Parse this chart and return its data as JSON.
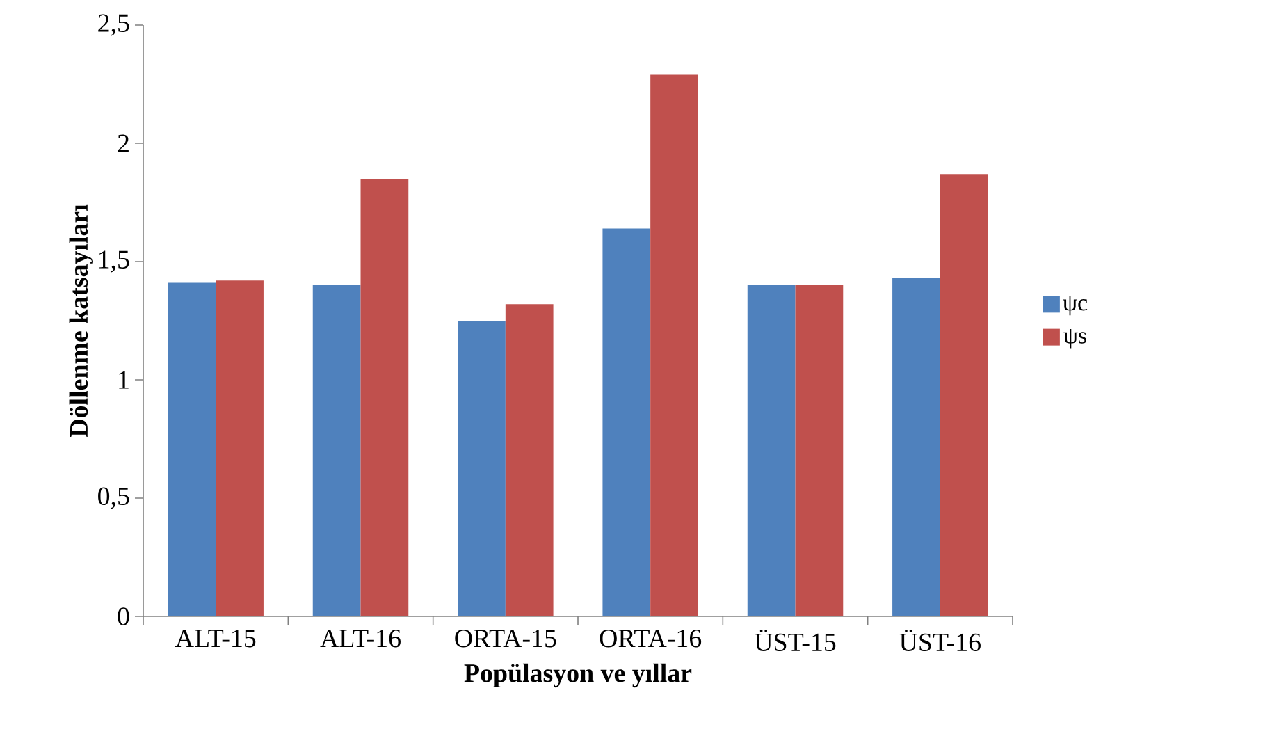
{
  "chart_data": {
    "type": "bar",
    "xlabel": "Popülasyon ve yıllar",
    "ylabel": "Döllenme katsayıları",
    "categories": [
      "ALT-15",
      "ALT-16",
      "ORTA-15",
      "ORTA-16",
      "ÜST-15",
      "ÜST-16"
    ],
    "series": [
      {
        "name": "ψc",
        "color": "#4f81bd",
        "values": [
          1.41,
          1.4,
          1.25,
          1.64,
          1.4,
          1.43
        ]
      },
      {
        "name": "ψs",
        "color": "#c0504d",
        "values": [
          1.42,
          1.85,
          1.32,
          2.29,
          1.4,
          1.87
        ]
      }
    ],
    "ylim": [
      0,
      2.5
    ],
    "yticks": [
      0,
      {
        "value": 0.5,
        "label": "0,5"
      },
      1,
      {
        "value": 1.5,
        "label": "1,5"
      },
      2,
      {
        "value": 2.5,
        "label": "2,5"
      }
    ],
    "grid": false,
    "legend": "right"
  }
}
